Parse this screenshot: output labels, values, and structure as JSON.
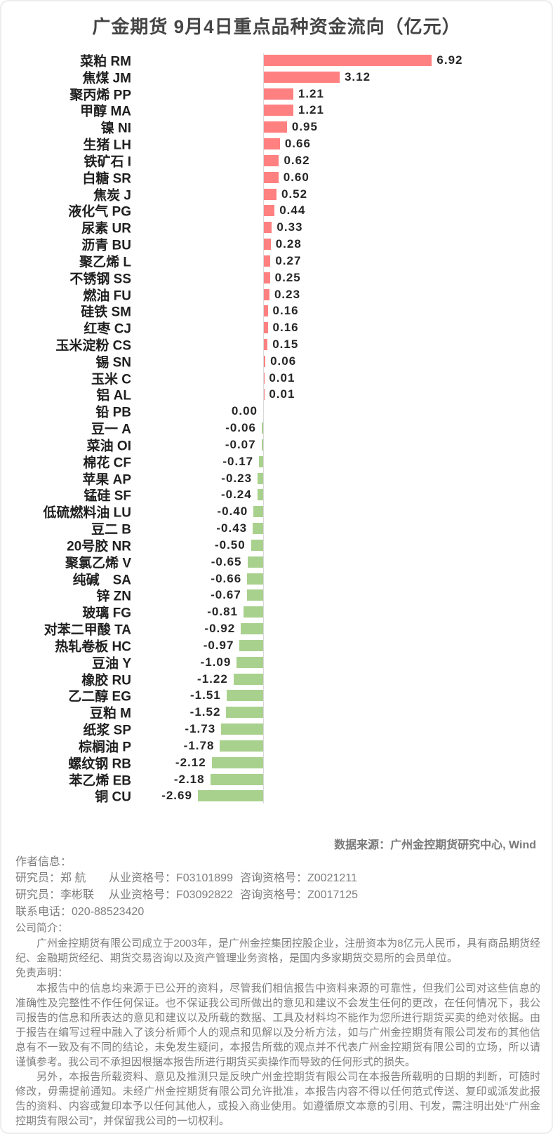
{
  "title": "广金期货 9月4日重点品种资金流向（亿元）",
  "colors": {
    "positive_bar": "#FF8080",
    "negative_bar": "#A9D18E",
    "axis_line": "#D9D9D9",
    "title_text": "#454545",
    "category_text": "#1F1F1F",
    "footer_text": "#7F7F7F"
  },
  "chart_data": {
    "type": "bar",
    "orientation": "horizontal",
    "title": "广金期货 9月4日重点品种资金流向（亿元）",
    "unit": "亿元",
    "xlim": [
      -2.69,
      6.92
    ],
    "grid": false,
    "legend": false,
    "categories": [
      "菜粕 RM",
      "焦煤 JM",
      "聚丙烯 PP",
      "甲醇 MA",
      "镍 NI",
      "生猪 LH",
      "铁矿石 I",
      "白糖 SR",
      "焦炭 J",
      "液化气 PG",
      "尿素 UR",
      "沥青 BU",
      "聚乙烯 L",
      "不锈钢 SS",
      "燃油 FU",
      "硅铁 SM",
      "红枣 CJ",
      "玉米淀粉 CS",
      "锡 SN",
      "玉米 C",
      "铝 AL",
      "铅 PB",
      "豆一 A",
      "菜油 OI",
      "棉花 CF",
      "苹果 AP",
      "锰硅 SF",
      "低硫燃料油 LU",
      "豆二 B",
      "20号胶 NR",
      "聚氯乙烯 V",
      "纯碱　SA",
      "锌 ZN",
      "玻璃 FG",
      "对苯二甲酸 TA",
      "热轧卷板 HC",
      "豆油 Y",
      "橡胶 RU",
      "乙二醇 EG",
      "豆粕 M",
      "纸浆 SP",
      "棕榈油 P",
      "螺纹钢 RB",
      "苯乙烯 EB",
      "铜 CU"
    ],
    "values": [
      6.92,
      3.12,
      1.21,
      1.21,
      0.95,
      0.66,
      0.62,
      0.6,
      0.52,
      0.44,
      0.33,
      0.28,
      0.27,
      0.25,
      0.23,
      0.16,
      0.16,
      0.15,
      0.06,
      0.01,
      0.01,
      0.0,
      -0.06,
      -0.07,
      -0.17,
      -0.23,
      -0.24,
      -0.4,
      -0.43,
      -0.5,
      -0.65,
      -0.66,
      -0.67,
      -0.81,
      -0.92,
      -0.97,
      -1.09,
      -1.22,
      -1.51,
      -1.52,
      -1.73,
      -1.78,
      -2.12,
      -2.18,
      -2.69
    ]
  },
  "source_note": "数据来源：广州金控期货研究中心, Wind",
  "footer": {
    "author_heading": "作者信息：",
    "researchers": [
      {
        "role_name": "研究员：郑 航",
        "license": "从业资格号：F03101899",
        "advisory": "咨询资格号：Z0021211"
      },
      {
        "role_name": "研究员：李彬联",
        "license": "从业资格号：F03092822",
        "advisory": "咨询资格号：Z0017125"
      }
    ],
    "contact_line": "联系电话：020-88523420",
    "company_heading": "公司简介：",
    "company_intro": "广州金控期货有限公司成立于2003年，是广州金控集团控股企业，注册资本为8亿元人民币，具有商品期货经纪、金融期货经纪、期货交易咨询以及资产管理业务资格，是国内多家期货交易所的会员单位。",
    "disclaimer_heading": "免责声明：",
    "disclaimer_paragraphs": [
      "本报告中的信息均来源于已公开的资料，尽管我们相信报告中资料来源的可靠性，但我们公司对这些信息的准确性及完整性不作任何保证。也不保证我公司所做出的意见和建议不会发生任何的更改，在任何情况下，我公司报告的信息和所表达的意见和建议以及所载的数据、工具及材料均不能作为您所进行期货买卖的绝对依据。由于报告在编写过程中融入了该分析师个人的观点和见解以及分析方法，如与广州金控期货有限公司发布的其他信息有不一致及有不同的结论，未免发生疑问，本报告所载的观点并不代表广州金控期货有限公司的立场，所以请谨慎参考。我公司不承担因根据本报告所进行期货买卖操作而导致的任何形式的损失。",
      "另外，本报告所载资料、意见及推测只是反映广州金控期货有限公司在本报告所载明的日期的判断，可随时修改，毋需提前通知。未经广州金控期货有限公司允许批准，本报告内容不得以任何范式传送、复印或派发此报告的资料、内容或复印本予以任何其他人，或投入商业使用。如遵循原文本意的引用、刊发，需注明出处“广州金控期货有限公司”，并保留我公司的一切权利。"
    ]
  }
}
